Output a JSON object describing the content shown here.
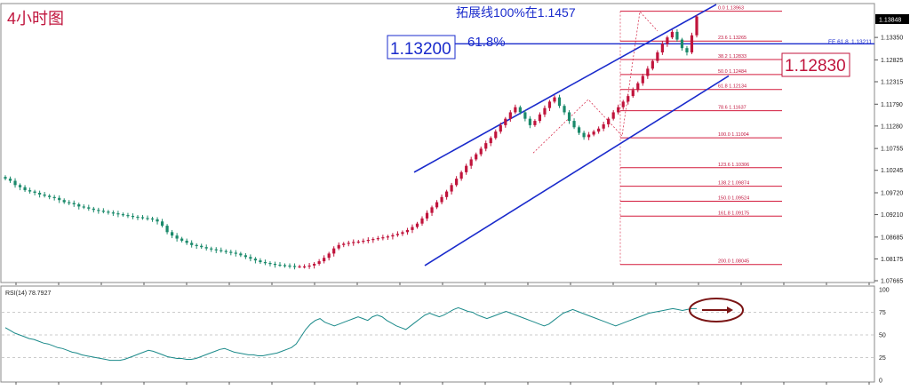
{
  "timeframe_label": "4小时图",
  "extension_note": "拓展线100%在1.1457",
  "level_box_1": "1.13200",
  "level_box_1_pct": "61.8%",
  "level_box_2": "1.12830",
  "fe_label": "FE 61.8",
  "fe_value": "1.13211",
  "current_price": "1.13848",
  "rsi_label": "RSI(14) 78.7927",
  "colors": {
    "up_candle": "#c0143c",
    "down_candle": "#1b8a6b",
    "channel": "#1a2bcc",
    "fib": "#d31a3c",
    "rsi_line": "#1b8a8a",
    "annotation_blue": "#1a2bcc",
    "annotation_red": "#c0143c",
    "arrow": "#7a1414"
  },
  "icons": [
    "arrow-right-icon"
  ],
  "chart_data": [
    {
      "type": "candlestick",
      "title": "",
      "xlabel": "",
      "ylabel": "",
      "ylim": [
        1.07665,
        1.141
      ],
      "y_ticks": [
        "1.13848",
        "1.13350",
        "1.12825",
        "1.12315",
        "1.11790",
        "1.11280",
        "1.10755",
        "1.10245",
        "1.09720",
        "1.09210",
        "1.08685",
        "1.08175",
        "1.07665"
      ],
      "close_series": [
        1.1005,
        1.1,
        1.099,
        1.0985,
        1.0978,
        1.0975,
        1.0972,
        1.0968,
        1.0965,
        1.0962,
        1.096,
        1.0955,
        1.095,
        1.0948,
        1.0945,
        1.094,
        1.0938,
        1.0935,
        1.0932,
        1.093,
        1.0928,
        1.0926,
        1.0924,
        1.0922,
        1.092,
        1.0918,
        1.0916,
        1.0915,
        1.0913,
        1.0912,
        1.091,
        1.0905,
        1.0895,
        1.088,
        1.0872,
        1.0865,
        1.086,
        1.0855,
        1.085,
        1.0848,
        1.0845,
        1.0842,
        1.084,
        1.0838,
        1.0836,
        1.0834,
        1.0832,
        1.083,
        1.0826,
        1.0822,
        1.0818,
        1.0814,
        1.081,
        1.0808,
        1.0806,
        1.0804,
        1.0803,
        1.0802,
        1.0801,
        1.08,
        1.08,
        1.08,
        1.0802,
        1.0806,
        1.0812,
        1.082,
        1.083,
        1.0842,
        1.085,
        1.0853,
        1.0855,
        1.0857,
        1.0858,
        1.086,
        1.0862,
        1.0864,
        1.0866,
        1.0868,
        1.087,
        1.0873,
        1.0876,
        1.088,
        1.0885,
        1.0892,
        1.09,
        1.0912,
        1.0925,
        1.0938,
        1.095,
        1.0962,
        1.0975,
        1.099,
        1.1005,
        1.102,
        1.1035,
        1.105,
        1.1062,
        1.1075,
        1.1088,
        1.11,
        1.1115,
        1.113,
        1.1145,
        1.116,
        1.1172,
        1.116,
        1.1145,
        1.113,
        1.114,
        1.1155,
        1.117,
        1.1185,
        1.1195,
        1.1175,
        1.116,
        1.114,
        1.1125,
        1.1112,
        1.1102,
        1.1108,
        1.1115,
        1.1122,
        1.1132,
        1.1145,
        1.116,
        1.1172,
        1.1185,
        1.1198,
        1.1212,
        1.1228,
        1.1245,
        1.1262,
        1.128,
        1.13,
        1.132,
        1.1335,
        1.1348,
        1.133,
        1.131,
        1.13,
        1.134,
        1.1384
      ],
      "fibonacci_levels": [
        {
          "ratio": "0.0",
          "price": "1.13963"
        },
        {
          "ratio": "23.6",
          "price": "1.13265"
        },
        {
          "ratio": "38.2",
          "price": "1.12833"
        },
        {
          "ratio": "50.0",
          "price": "1.12484"
        },
        {
          "ratio": "61.8",
          "price": "1.12134"
        },
        {
          "ratio": "78.6",
          "price": "1.11637"
        },
        {
          "ratio": "100.0",
          "price": "1.11004"
        },
        {
          "ratio": "123.6",
          "price": "1.10306"
        },
        {
          "ratio": "138.2",
          "price": "1.09874"
        },
        {
          "ratio": "150.0",
          "price": "1.09524"
        },
        {
          "ratio": "161.8",
          "price": "1.09175"
        },
        {
          "ratio": "200.0",
          "price": "1.08045"
        }
      ],
      "channel": {
        "upper_start": [
          466,
          1.102
        ],
        "upper_end": [
          806,
          1.1412
        ],
        "lower_start": [
          478,
          1.0802
        ],
        "lower_end": [
          820,
          1.1245
        ]
      },
      "horizontal_level": 1.132
    },
    {
      "type": "line",
      "title": "",
      "ylim": [
        0,
        100
      ],
      "y_ticks": [
        "100",
        "75",
        "50",
        "25",
        "0"
      ],
      "values": [
        58,
        55,
        52,
        50,
        48,
        46,
        45,
        43,
        41,
        40,
        38,
        36,
        35,
        33,
        31,
        30,
        28,
        27,
        26,
        25,
        24,
        23,
        22,
        22,
        22,
        23,
        25,
        27,
        29,
        31,
        33,
        32,
        30,
        28,
        26,
        25,
        24,
        24,
        23,
        23,
        24,
        26,
        28,
        30,
        32,
        34,
        35,
        33,
        31,
        30,
        29,
        28,
        28,
        27,
        27,
        28,
        29,
        30,
        32,
        34,
        36,
        40,
        48,
        56,
        62,
        66,
        68,
        64,
        62,
        60,
        62,
        64,
        66,
        68,
        70,
        68,
        66,
        70,
        72,
        70,
        66,
        63,
        60,
        58,
        56,
        60,
        64,
        68,
        72,
        74,
        72,
        70,
        72,
        75,
        78,
        80,
        78,
        76,
        75,
        72,
        70,
        68,
        70,
        72,
        74,
        76,
        74,
        72,
        70,
        68,
        66,
        64,
        62,
        60,
        62,
        66,
        70,
        74,
        76,
        78,
        76,
        74,
        72,
        70,
        68,
        66,
        64,
        62,
        60,
        62,
        64,
        66,
        68,
        70,
        72,
        74,
        75,
        76,
        77,
        78,
        79,
        78,
        77,
        78,
        79,
        79
      ]
    }
  ]
}
